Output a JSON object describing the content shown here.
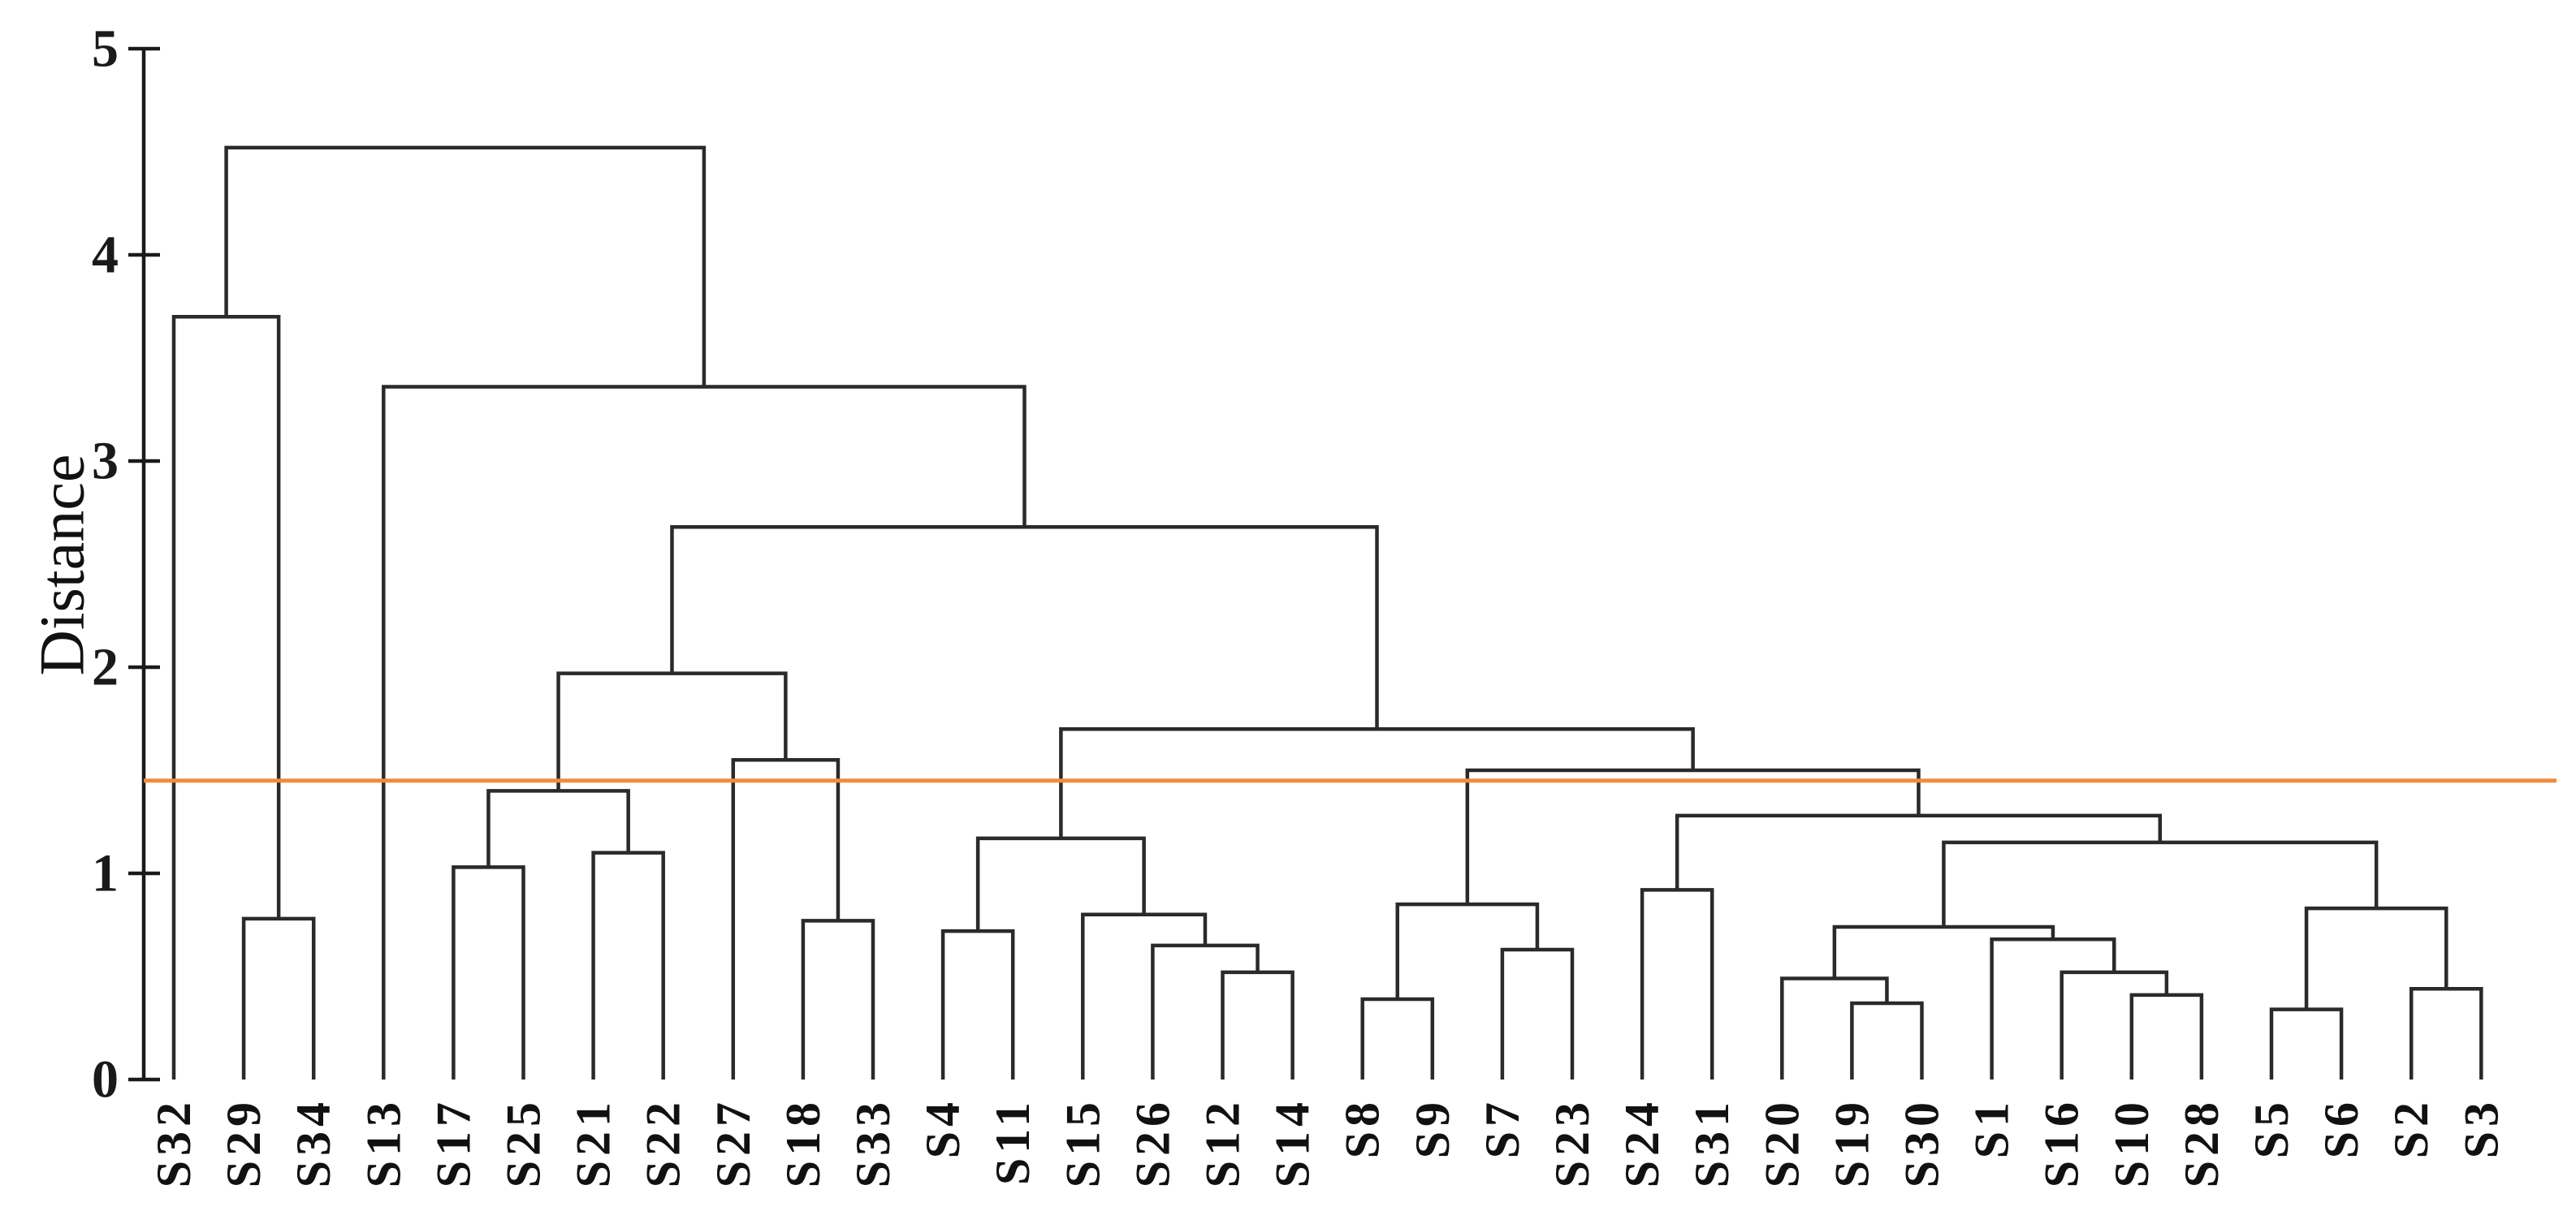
{
  "chart_data": {
    "type": "dendrogram",
    "title": "",
    "xlabel": "",
    "ylabel": "Distance",
    "ylim": [
      0,
      5
    ],
    "y_ticks": [
      0,
      1,
      2,
      3,
      4,
      5
    ],
    "grid": false,
    "legend": null,
    "line_color": "#2a2a2a",
    "axis_color": "#1a1a1a",
    "leaves": [
      "S32",
      "S29",
      "S34",
      "S13",
      "S17",
      "S25",
      "S21",
      "S22",
      "S27",
      "S18",
      "S33",
      "S4",
      "S11",
      "S15",
      "S26",
      "S12",
      "S14",
      "S8",
      "S9",
      "S7",
      "S23",
      "S24",
      "S31",
      "S20",
      "S19",
      "S30",
      "S1",
      "S16",
      "S10",
      "S28",
      "S5",
      "S6",
      "S2",
      "S3"
    ],
    "merges": [
      {
        "id": "M1",
        "left": "S29",
        "right": "S34",
        "height": 0.78
      },
      {
        "id": "M2",
        "left": "S32",
        "right": "M1",
        "height": 3.7
      },
      {
        "id": "M3",
        "left": "S17",
        "right": "S25",
        "height": 1.03
      },
      {
        "id": "M4",
        "left": "S21",
        "right": "S22",
        "height": 1.1
      },
      {
        "id": "M5",
        "left": "M3",
        "right": "M4",
        "height": 1.4
      },
      {
        "id": "M6",
        "left": "S18",
        "right": "S33",
        "height": 0.77
      },
      {
        "id": "M7",
        "left": "S27",
        "right": "M6",
        "height": 1.55
      },
      {
        "id": "M8",
        "left": "M5",
        "right": "M7",
        "height": 1.97
      },
      {
        "id": "M9",
        "left": "S4",
        "right": "S11",
        "height": 0.72
      },
      {
        "id": "M10",
        "left": "S12",
        "right": "S14",
        "height": 0.52
      },
      {
        "id": "M11",
        "left": "S26",
        "right": "M10",
        "height": 0.65
      },
      {
        "id": "M12",
        "left": "S15",
        "right": "M11",
        "height": 0.8
      },
      {
        "id": "M13",
        "left": "M9",
        "right": "M12",
        "height": 1.17
      },
      {
        "id": "M14",
        "left": "S8",
        "right": "S9",
        "height": 0.39
      },
      {
        "id": "M15",
        "left": "S7",
        "right": "S23",
        "height": 0.63
      },
      {
        "id": "M16",
        "left": "M14",
        "right": "M15",
        "height": 0.85
      },
      {
        "id": "M17",
        "left": "S24",
        "right": "S31",
        "height": 0.92
      },
      {
        "id": "M18",
        "left": "S19",
        "right": "S30",
        "height": 0.37
      },
      {
        "id": "M19",
        "left": "S20",
        "right": "M18",
        "height": 0.49
      },
      {
        "id": "M20",
        "left": "S10",
        "right": "S28",
        "height": 0.41
      },
      {
        "id": "M21",
        "left": "S16",
        "right": "M20",
        "height": 0.52
      },
      {
        "id": "M22",
        "left": "S1",
        "right": "M21",
        "height": 0.68
      },
      {
        "id": "M23",
        "left": "M19",
        "right": "M22",
        "height": 0.74
      },
      {
        "id": "M24",
        "left": "S5",
        "right": "S6",
        "height": 0.34
      },
      {
        "id": "M25",
        "left": "S2",
        "right": "S3",
        "height": 0.44
      },
      {
        "id": "M26",
        "left": "M24",
        "right": "M25",
        "height": 0.83
      },
      {
        "id": "M27",
        "left": "M23",
        "right": "M26",
        "height": 1.15
      },
      {
        "id": "M28",
        "left": "M17",
        "right": "M27",
        "height": 1.28
      },
      {
        "id": "M29",
        "left": "M16",
        "right": "M28",
        "height": 1.5
      },
      {
        "id": "M30",
        "left": "M13",
        "right": "M29",
        "height": 1.7
      },
      {
        "id": "M31",
        "left": "M8",
        "right": "M30",
        "height": 2.68
      },
      {
        "id": "M32",
        "left": "S13",
        "right": "M31",
        "height": 3.36
      },
      {
        "id": "M33",
        "left": "M2",
        "right": "M32",
        "height": 4.52
      }
    ],
    "threshold_line": {
      "value": 1.45,
      "color": "#F28B3E"
    }
  }
}
